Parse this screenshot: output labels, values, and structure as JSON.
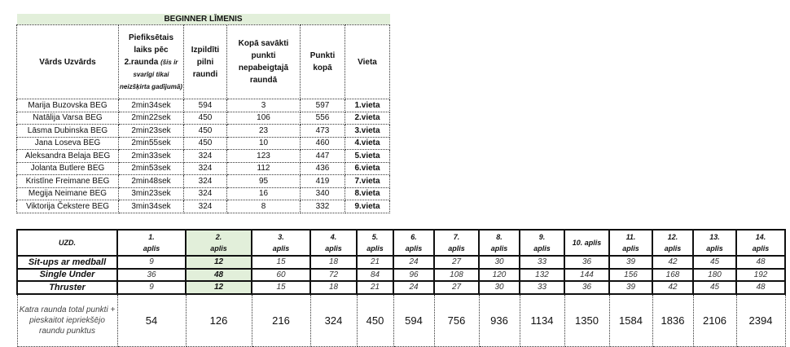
{
  "top_table": {
    "title": "BEGINNER LĪMENIS",
    "headers": {
      "name": "Vārds Uzvārds",
      "time": "Piefiksētais laiks pēc 2.raunda",
      "time_note": "(šis ir svarīgi tikai neizšķirta gadījumā)",
      "rounds": "Izpildīti pilni raundi",
      "partial": "Kopā savākti punkti nepabeigtajā raundā",
      "total": "Punkti kopā",
      "place": "Vieta"
    },
    "rows": [
      {
        "name": "Marija Buzovska BEG",
        "time": "2min34sek",
        "rounds": "594",
        "partial": "3",
        "total": "597",
        "place": "1.vieta"
      },
      {
        "name": "Natālija Varsa BEG",
        "time": "2min22sek",
        "rounds": "450",
        "partial": "106",
        "total": "556",
        "place": "2.vieta"
      },
      {
        "name": "Lāsma Dubinska BEG",
        "time": "2min23sek",
        "rounds": "450",
        "partial": "23",
        "total": "473",
        "place": "3.vieta"
      },
      {
        "name": "Jana Loseva BEG",
        "time": "2min55sek",
        "rounds": "450",
        "partial": "10",
        "total": "460",
        "place": "4.vieta"
      },
      {
        "name": "Aleksandra Belaja BEG",
        "time": "2min33sek",
        "rounds": "324",
        "partial": "123",
        "total": "447",
        "place": "5.vieta"
      },
      {
        "name": "Jolanta Butlere BEG",
        "time": "2min53sek",
        "rounds": "324",
        "partial": "112",
        "total": "436",
        "place": "6.vieta"
      },
      {
        "name": "Kristīne Freimane BEG",
        "time": "2min48sek",
        "rounds": "324",
        "partial": "95",
        "total": "419",
        "place": "7.vieta"
      },
      {
        "name": "Megija Neimane BEG",
        "time": "3min23sek",
        "rounds": "324",
        "partial": "16",
        "total": "340",
        "place": "8.vieta"
      },
      {
        "name": "Viktorija Čekstere BEG",
        "time": "3min34sek",
        "rounds": "324",
        "partial": "8",
        "total": "332",
        "place": "9.vieta"
      }
    ]
  },
  "bottom_table": {
    "corner": "UZD.",
    "rounds": [
      "1.",
      "2.",
      "3.",
      "4.",
      "5.",
      "6.",
      "7.",
      "8.",
      "9.",
      "10.",
      "11.",
      "12.",
      "13.",
      "14."
    ],
    "round_word": "aplis",
    "highlight_round_index": 1,
    "highlight_color": "#e2efda",
    "exercises": [
      {
        "name": "Sit-ups ar medball",
        "values": [
          "9",
          "12",
          "15",
          "18",
          "21",
          "24",
          "27",
          "30",
          "33",
          "36",
          "39",
          "42",
          "45",
          "48"
        ]
      },
      {
        "name": "Single Under",
        "values": [
          "36",
          "48",
          "60",
          "72",
          "84",
          "96",
          "108",
          "120",
          "132",
          "144",
          "156",
          "168",
          "180",
          "192"
        ]
      },
      {
        "name": "Thruster",
        "values": [
          "9",
          "12",
          "15",
          "18",
          "21",
          "24",
          "27",
          "30",
          "33",
          "36",
          "39",
          "42",
          "45",
          "48"
        ]
      }
    ],
    "total_label": "Katra raunda total punkti + pieskaitot iepriekšējo raundu punktus",
    "totals": [
      "54",
      "126",
      "216",
      "324",
      "450",
      "594",
      "756",
      "936",
      "1134",
      "1350",
      "1584",
      "1836",
      "2106",
      "2394"
    ]
  }
}
